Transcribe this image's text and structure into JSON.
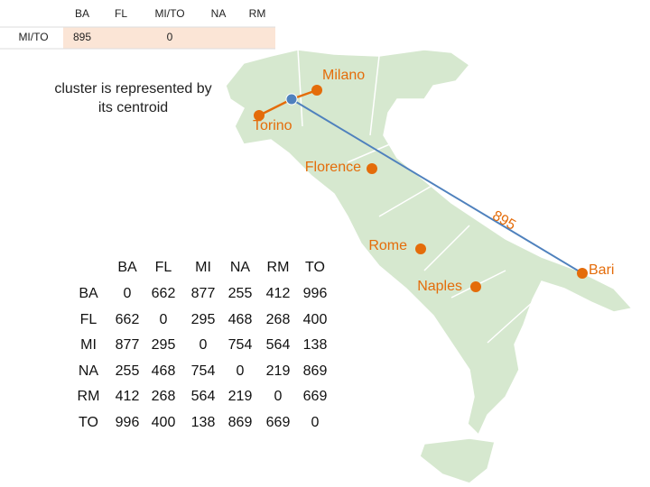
{
  "top_table": {
    "columns": [
      "BA",
      "FL",
      "MI/TO",
      "NA",
      "RM"
    ],
    "rows": [
      {
        "label": "MI/TO",
        "cells": [
          895,
          null,
          0,
          null,
          null
        ]
      }
    ]
  },
  "note": "cluster is represented by its centroid",
  "cities": [
    "Milano",
    "Torino",
    "Florence",
    "Rome",
    "Naples",
    "Bari"
  ],
  "edge_label": 895,
  "distance_table": {
    "columns": [
      "BA",
      "FL",
      "MI",
      "NA",
      "RM",
      "TO"
    ],
    "rows": [
      {
        "label": "BA",
        "cells": [
          0,
          662,
          877,
          255,
          412,
          996
        ]
      },
      {
        "label": "FL",
        "cells": [
          662,
          0,
          295,
          468,
          268,
          400
        ]
      },
      {
        "label": "MI",
        "cells": [
          877,
          295,
          0,
          754,
          564,
          138
        ]
      },
      {
        "label": "NA",
        "cells": [
          255,
          468,
          754,
          0,
          219,
          869
        ]
      },
      {
        "label": "RM",
        "cells": [
          412,
          268,
          564,
          219,
          0,
          669
        ]
      },
      {
        "label": "TO",
        "cells": [
          996,
          400,
          138,
          869,
          669,
          0
        ]
      }
    ]
  }
}
